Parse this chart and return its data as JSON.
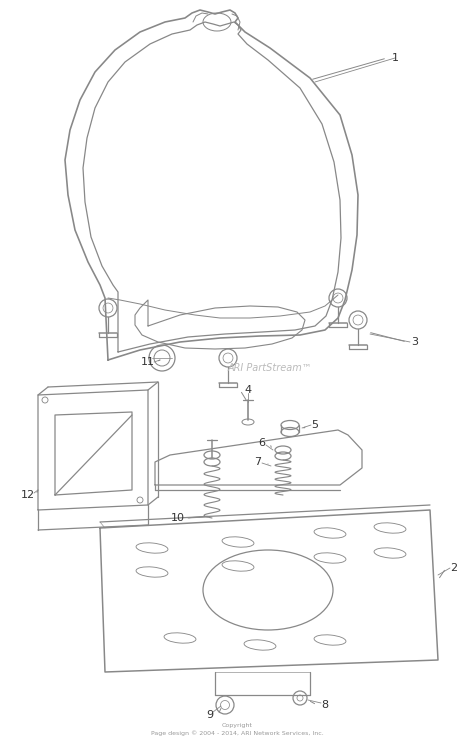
{
  "background_color": "#ffffff",
  "watermark_text": "ARI PartStream™",
  "watermark_color": "#bbbbbb",
  "watermark_fontsize": 7,
  "footer_line1": "Copyright",
  "footer_line2": "Page design © 2004 - 2014, ARI Network Services, Inc.",
  "footer_fontsize": 4.5,
  "line_color": "#888888",
  "line_width": 0.9,
  "label_fontsize": 8
}
